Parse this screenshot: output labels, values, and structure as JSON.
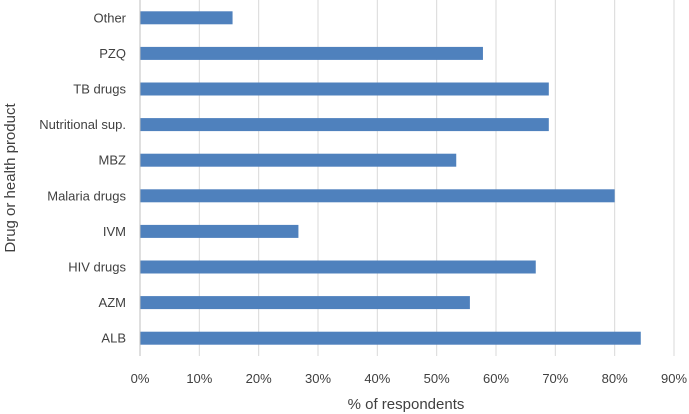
{
  "chart_data": {
    "type": "bar",
    "orientation": "horizontal",
    "title": "",
    "xlabel": "% of respondents",
    "ylabel": "Drug or health product",
    "categories": [
      "ALB",
      "AZM",
      "HIV drugs",
      "IVM",
      "Malaria drugs",
      "MBZ",
      "Nutritional sup.",
      "TB drugs",
      "PZQ",
      "Other"
    ],
    "values": [
      84.4,
      55.6,
      66.7,
      26.7,
      80.0,
      53.3,
      68.9,
      68.9,
      57.8,
      15.6
    ],
    "xlim": [
      0,
      90
    ],
    "xticks": [
      0,
      10,
      20,
      30,
      40,
      50,
      60,
      70,
      80,
      90
    ],
    "xtick_labels": [
      "0%",
      "10%",
      "20%",
      "30%",
      "40%",
      "50%",
      "60%",
      "70%",
      "80%",
      "90%"
    ],
    "grid": true,
    "legend": "none",
    "bar_color": "#4f81bd",
    "grid_color": "#d9d9d9",
    "axis_color": "#bfbfbf",
    "text_color": "#404040"
  }
}
